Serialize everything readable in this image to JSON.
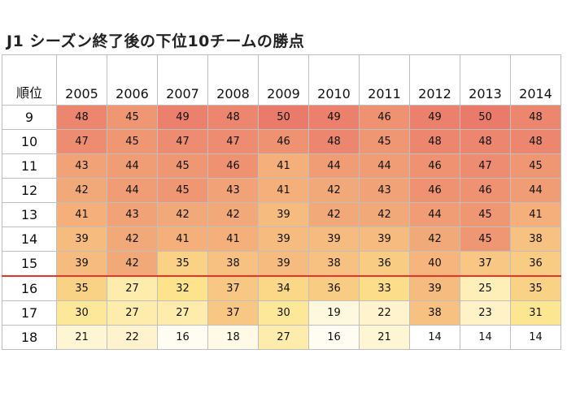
{
  "chart_data": {
    "type": "heatmap",
    "title": "J1 シーズン終了後の下位10チームの勝点",
    "row_header": "順位",
    "years": [
      "2005",
      "2006",
      "2007",
      "2008",
      "2009",
      "2010",
      "2011",
      "2012",
      "2013",
      "2014"
    ],
    "ranks": [
      "9",
      "10",
      "11",
      "12",
      "13",
      "14",
      "15",
      "16",
      "17",
      "18"
    ],
    "values": [
      [
        48,
        45,
        49,
        48,
        50,
        49,
        46,
        49,
        50,
        48
      ],
      [
        47,
        45,
        47,
        47,
        46,
        48,
        45,
        48,
        48,
        48
      ],
      [
        43,
        44,
        45,
        46,
        41,
        44,
        44,
        46,
        47,
        45
      ],
      [
        42,
        44,
        45,
        43,
        41,
        42,
        43,
        46,
        46,
        44
      ],
      [
        41,
        43,
        42,
        42,
        39,
        42,
        42,
        44,
        45,
        41
      ],
      [
        39,
        42,
        41,
        41,
        39,
        39,
        39,
        42,
        45,
        38
      ],
      [
        39,
        42,
        35,
        38,
        39,
        38,
        36,
        40,
        37,
        36
      ],
      [
        35,
        27,
        32,
        37,
        34,
        36,
        33,
        39,
        25,
        35
      ],
      [
        30,
        27,
        27,
        37,
        30,
        19,
        22,
        38,
        23,
        31
      ],
      [
        21,
        22,
        16,
        18,
        27,
        16,
        21,
        14,
        14,
        14
      ]
    ],
    "relegation_line_after_rank": "15",
    "colors": {
      "low": "#ffffff",
      "mid": "#fde48c",
      "high": "#ea7a6a",
      "line": "#e8332a",
      "grid": "#bfbfbf"
    }
  }
}
